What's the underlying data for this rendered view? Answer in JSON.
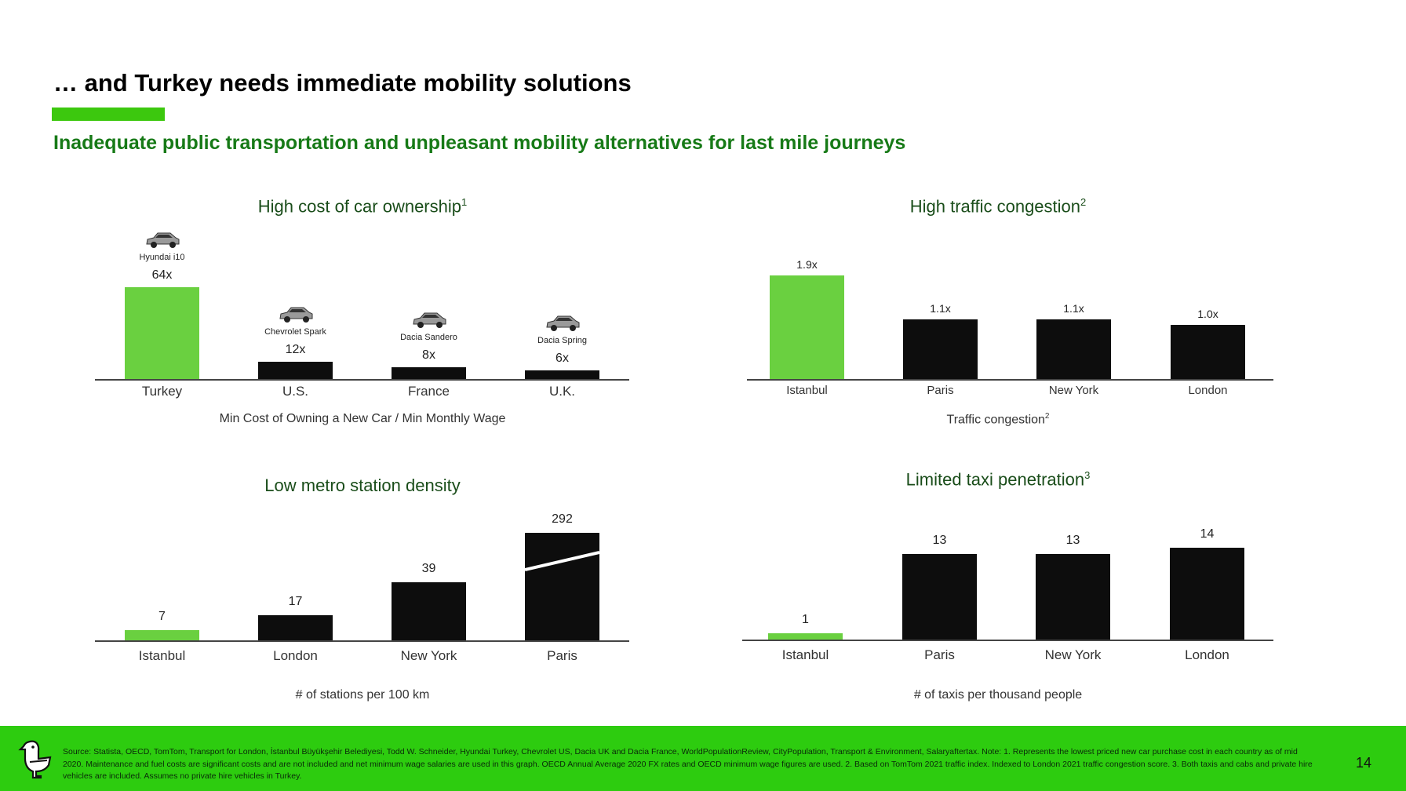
{
  "header": {
    "title": "… and Turkey needs immediate mobility solutions",
    "subtitle": "Inadequate public transportation and unpleasant mobility alternatives for last mile journeys"
  },
  "colors": {
    "accent": "#3cc80e",
    "highlight_bar": "#6ad040",
    "bar": "#0d0d0d",
    "subtitle": "#177a17",
    "footer": "#2dcc0f"
  },
  "chart_data": [
    {
      "id": "car-ownership",
      "type": "bar",
      "title": "High cost of car ownership",
      "title_sup": "1",
      "xlabel": "Min Cost of Owning a New Car / Min Monthly Wage",
      "xlabel_sup": "",
      "categories": [
        "Turkey",
        "U.S.",
        "France",
        "U.K."
      ],
      "values": [
        64,
        12,
        8,
        6
      ],
      "value_labels": [
        "64x",
        "12x",
        "8x",
        "6x"
      ],
      "car_models": [
        "Hyundai i10",
        "Chevrolet Spark",
        "Dacia Sandero",
        "Dacia Spring"
      ],
      "ylim": [
        0,
        64
      ]
    },
    {
      "id": "traffic",
      "type": "bar",
      "title": "High traffic congestion",
      "title_sup": "2",
      "xlabel": "Traffic congestion",
      "xlabel_sup": "2",
      "categories": [
        "Istanbul",
        "Paris",
        "New York",
        "London"
      ],
      "values": [
        1.9,
        1.1,
        1.1,
        1.0
      ],
      "value_labels": [
        "1.9x",
        "1.1x",
        "1.1x",
        "1.0x"
      ],
      "ylim": [
        0,
        1.9
      ]
    },
    {
      "id": "metro",
      "type": "bar",
      "title": "Low metro station density",
      "title_sup": "",
      "xlabel": "# of stations per 100 km",
      "xlabel_sup": "",
      "categories": [
        "Istanbul",
        "London",
        "New York",
        "Paris"
      ],
      "values": [
        7,
        17,
        39,
        292
      ],
      "value_labels": [
        "7",
        "17",
        "39",
        "292"
      ],
      "broken_axis": true,
      "ylim": [
        0,
        72
      ]
    },
    {
      "id": "taxi",
      "type": "bar",
      "title": "Limited taxi penetration",
      "title_sup": "3",
      "xlabel": "# of taxis per thousand people",
      "xlabel_sup": "",
      "categories": [
        "Istanbul",
        "Paris",
        "New York",
        "London"
      ],
      "values": [
        1,
        13,
        13,
        14
      ],
      "value_labels": [
        "1",
        "13",
        "13",
        "14"
      ],
      "ylim": [
        0,
        14
      ]
    }
  ],
  "footer": {
    "source": "Source: Statista, OECD, TomTom, Transport for London, İstanbul Büyükşehir Belediyesi, Todd W. Schneider, Hyundai Turkey, Chevrolet US, Dacia UK  and Dacia France, WorldPopulationReview, CityPopulation, Transport & Environment, Salaryaftertax. Note: 1. Represents the lowest priced new car purchase cost in each country as of mid 2020. Maintenance and fuel costs are significant costs and are not included and net minimum wage salaries are used in this graph. OECD Annual Average 2020 FX rates and OECD minimum wage figures are used. 2. Based on TomTom 2021 traffic index. Indexed to London 2021 traffic congestion score.  3. Both taxis and cabs and private hire vehicles are included. Assumes no private hire vehicles in Turkey.",
    "page_number": "14"
  }
}
